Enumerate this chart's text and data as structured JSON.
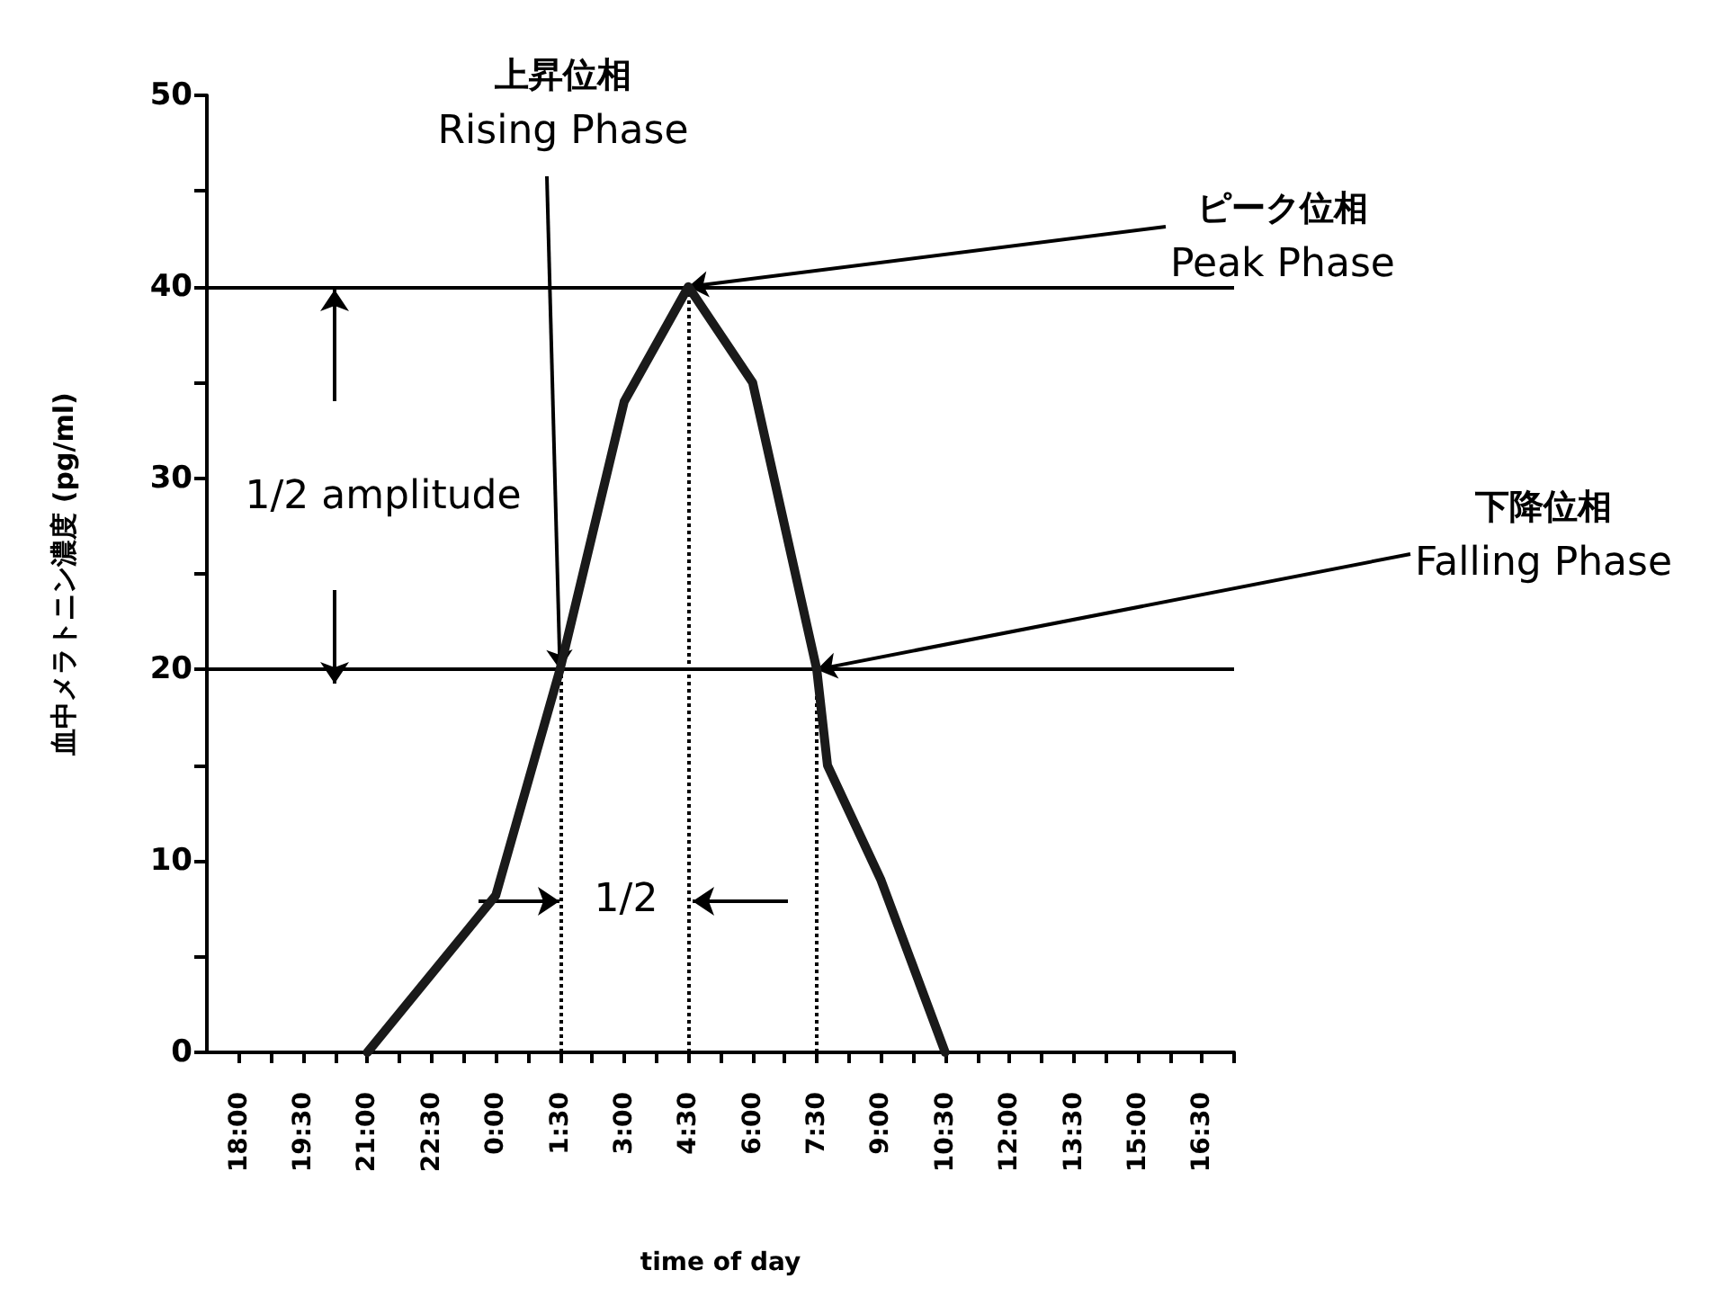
{
  "chart_data": {
    "type": "line",
    "xlabel": "time of day",
    "ylabel": "血中メラトニン濃度 (pg/ml)",
    "x": [
      "2000-01-01T21:00",
      "2000-01-02T00:00",
      "2000-01-02T01:30",
      "2000-01-02T03:00",
      "2000-01-02T04:30",
      "2000-01-02T06:00",
      "2000-01-02T07:30",
      "2000-01-02T07:45",
      "2000-01-02T09:00",
      "2000-01-02T10:30"
    ],
    "series": [
      {
        "color": "#1a1a1a",
        "values": [
          0,
          8.2,
          20,
          34,
          40,
          35,
          20,
          15,
          9,
          0
        ]
      }
    ],
    "xlim": [
      "2000-01-01T17:15",
      "2000-01-02T17:15"
    ],
    "xticks": [
      {
        "value": "2000-01-01T18:00",
        "label": "18:00"
      },
      {
        "value": "2000-01-01T18:45",
        "label": null
      },
      {
        "value": "2000-01-01T19:30",
        "label": "19:30"
      },
      {
        "value": "2000-01-01T20:15",
        "label": null
      },
      {
        "value": "2000-01-01T21:00",
        "label": "21:00"
      },
      {
        "value": "2000-01-01T21:45",
        "label": null
      },
      {
        "value": "2000-01-01T22:30",
        "label": "22:30"
      },
      {
        "value": "2000-01-01T23:15",
        "label": null
      },
      {
        "value": "2000-01-02T00:00",
        "label": "0:00"
      },
      {
        "value": "2000-01-02T00:45",
        "label": null
      },
      {
        "value": "2000-01-02T01:30",
        "label": "1:30"
      },
      {
        "value": "2000-01-02T02:15",
        "label": null
      },
      {
        "value": "2000-01-02T03:00",
        "label": "3:00"
      },
      {
        "value": "2000-01-02T03:45",
        "label": null
      },
      {
        "value": "2000-01-02T04:30",
        "label": "4:30"
      },
      {
        "value": "2000-01-02T05:15",
        "label": null
      },
      {
        "value": "2000-01-02T06:00",
        "label": "6:00"
      },
      {
        "value": "2000-01-02T06:45",
        "label": null
      },
      {
        "value": "2000-01-02T07:30",
        "label": "7:30"
      },
      {
        "value": "2000-01-02T08:15",
        "label": null
      },
      {
        "value": "2000-01-02T09:00",
        "label": "9:00"
      },
      {
        "value": "2000-01-02T09:45",
        "label": null
      },
      {
        "value": "2000-01-02T10:30",
        "label": "10:30"
      },
      {
        "value": "2000-01-02T11:15",
        "label": null
      },
      {
        "value": "2000-01-02T12:00",
        "label": "12:00"
      },
      {
        "value": "2000-01-02T12:45",
        "label": null
      },
      {
        "value": "2000-01-02T13:30",
        "label": "13:30"
      },
      {
        "value": "2000-01-02T14:15",
        "label": null
      },
      {
        "value": "2000-01-02T15:00",
        "label": "15:00"
      },
      {
        "value": "2000-01-02T15:45",
        "label": null
      },
      {
        "value": "2000-01-02T16:30",
        "label": "16:30"
      },
      {
        "value": "2000-01-02T17:15",
        "label": null
      }
    ],
    "ylim": [
      0,
      50
    ],
    "yticks": [
      0,
      {
        "value": 5,
        "label": null
      },
      10,
      {
        "value": 15,
        "label": null
      },
      20,
      {
        "value": 25,
        "label": null
      },
      30,
      {
        "value": 35,
        "label": null
      },
      40,
      {
        "value": 45,
        "label": null
      },
      50
    ],
    "ref_lines": [
      {
        "axis": "y",
        "value": 40,
        "color": "#000000",
        "line_style": "solid"
      },
      {
        "axis": "y",
        "value": 20,
        "color": "#000000",
        "line_style": "solid"
      },
      {
        "axis": "x",
        "value": "2000-01-02T01:30",
        "color": "#000000",
        "line_style": "dotted"
      },
      {
        "axis": "x",
        "value": "2000-01-02T04:30",
        "color": "#000000",
        "line_style": "dotted"
      },
      {
        "axis": "x",
        "value": "2000-01-02T07:30",
        "color": "#000000",
        "line_style": "dotted"
      }
    ],
    "annotations": [
      {
        "text": "上昇位相\nRising Phase",
        "x": "2000-01-02T01:30",
        "y": 20
      },
      {
        "text": "ピーク位相\nPeak Phase",
        "x": "2000-01-02T04:30",
        "y": 40
      },
      {
        "text": "下降位相\nFalling Phase",
        "x": "2000-01-02T07:30",
        "y": 20
      },
      "1/2 amplitude",
      "1/2"
    ],
    "grid": false,
    "marker": "none",
    "line_style": "solid"
  }
}
